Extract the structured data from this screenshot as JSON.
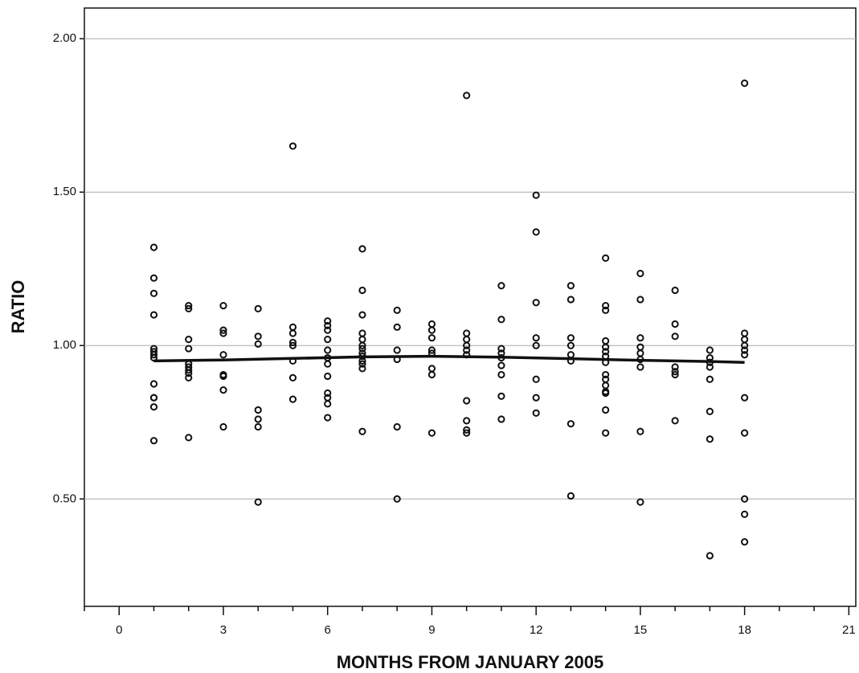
{
  "chart_data": {
    "type": "scatter",
    "x_label": "MONTHS FROM JANUARY 2005",
    "y_label": "RATIO",
    "color": "#111111",
    "x": [
      1,
      1,
      1,
      1,
      1,
      1,
      1,
      1,
      1,
      1,
      1,
      1,
      1,
      2,
      2,
      2,
      2,
      2,
      2,
      2,
      2,
      2,
      2,
      3,
      3,
      3,
      3,
      3,
      3,
      3,
      3,
      4,
      4,
      4,
      4,
      4,
      4,
      4,
      5,
      5,
      5,
      5,
      5,
      5,
      5,
      5,
      6,
      6,
      6,
      6,
      6,
      6,
      6,
      6,
      6,
      6,
      6,
      6,
      7,
      7,
      7,
      7,
      7,
      7,
      7,
      7,
      7,
      7,
      7,
      7,
      7,
      8,
      8,
      8,
      8,
      8,
      8,
      9,
      9,
      9,
      9,
      9,
      9,
      9,
      9,
      10,
      10,
      10,
      10,
      10,
      10,
      10,
      10,
      10,
      10,
      11,
      11,
      11,
      11,
      11,
      11,
      11,
      11,
      11,
      12,
      12,
      12,
      12,
      12,
      12,
      12,
      12,
      13,
      13,
      13,
      13,
      13,
      13,
      13,
      13,
      14,
      14,
      14,
      14,
      14,
      14,
      14,
      14,
      14,
      14,
      14,
      14,
      14,
      14,
      14,
      15,
      15,
      15,
      15,
      15,
      15,
      15,
      15,
      15,
      16,
      16,
      16,
      16,
      16,
      16,
      16,
      17,
      17,
      17,
      17,
      17,
      17,
      17,
      17,
      18,
      18,
      18,
      18,
      18,
      18,
      18,
      18,
      18,
      18,
      18
    ],
    "values": [
      1.32,
      1.22,
      1.17,
      1.1,
      0.99,
      0.98,
      0.97,
      0.96,
      0.875,
      0.83,
      0.83,
      0.8,
      0.69,
      1.13,
      1.12,
      1.02,
      0.99,
      0.94,
      0.93,
      0.92,
      0.91,
      0.895,
      0.7,
      1.13,
      1.05,
      1.04,
      0.97,
      0.905,
      0.9,
      0.855,
      0.735,
      1.12,
      1.03,
      1.005,
      0.79,
      0.76,
      0.735,
      0.49,
      1.65,
      1.06,
      1.04,
      1.01,
      1.0,
      0.95,
      0.895,
      0.825,
      1.08,
      1.065,
      1.05,
      1.02,
      0.985,
      0.96,
      0.94,
      0.9,
      0.845,
      0.83,
      0.81,
      0.765,
      1.315,
      1.18,
      1.1,
      1.04,
      1.02,
      1.0,
      0.99,
      0.975,
      0.965,
      0.95,
      0.94,
      0.925,
      0.72,
      1.115,
      1.06,
      0.985,
      0.955,
      0.735,
      0.5,
      1.07,
      1.05,
      1.025,
      0.985,
      0.975,
      0.925,
      0.905,
      0.715,
      1.815,
      1.04,
      1.02,
      1.0,
      0.985,
      0.97,
      0.82,
      0.755,
      0.725,
      0.715,
      1.195,
      1.085,
      0.99,
      0.975,
      0.96,
      0.935,
      0.905,
      0.835,
      0.76,
      1.49,
      1.37,
      1.14,
      1.025,
      1.0,
      0.89,
      0.83,
      0.78,
      1.195,
      1.15,
      1.025,
      1.0,
      0.97,
      0.95,
      0.745,
      0.51,
      1.285,
      1.13,
      1.115,
      1.015,
      0.995,
      0.98,
      0.965,
      0.945,
      0.905,
      0.89,
      0.87,
      0.85,
      0.845,
      0.79,
      0.715,
      1.235,
      1.15,
      1.025,
      0.995,
      0.975,
      0.955,
      0.93,
      0.72,
      0.49,
      1.18,
      1.07,
      1.03,
      0.93,
      0.915,
      0.905,
      0.755,
      0.985,
      0.96,
      0.945,
      0.93,
      0.89,
      0.785,
      0.695,
      0.315,
      1.855,
      1.04,
      1.02,
      1.0,
      0.985,
      0.97,
      0.83,
      0.715,
      0.5,
      0.45,
      0.36
    ],
    "fit": {
      "color": "#111111",
      "x": [
        1,
        3,
        5,
        7,
        9,
        11,
        13,
        15,
        17,
        18
      ],
      "values": [
        0.95,
        0.953,
        0.958,
        0.963,
        0.965,
        0.962,
        0.957,
        0.952,
        0.948,
        0.945
      ]
    },
    "xlim": [
      -1,
      21.2
    ],
    "ylim": [
      0.15,
      2.1
    ],
    "xticks": [
      0,
      3,
      6,
      9,
      12,
      15,
      18,
      21
    ],
    "xminorticks": [
      -1,
      1,
      2,
      4,
      5,
      7,
      8,
      10,
      11,
      13,
      14,
      16,
      17,
      19,
      20
    ],
    "yticks": [
      {
        "value": 0.5,
        "label": "0.50"
      },
      {
        "value": 1.0,
        "label": "1.00"
      },
      {
        "value": 1.5,
        "label": "1.50"
      },
      {
        "value": 2.0,
        "label": "2.00"
      }
    ],
    "grid": true
  }
}
